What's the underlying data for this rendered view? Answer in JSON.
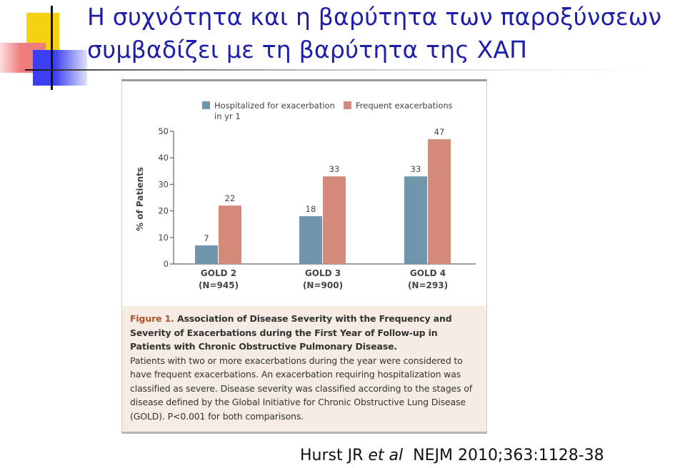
{
  "slide": {
    "title_line1": "Η συχνότητα και η βαρύτητα των παροξύνσεων",
    "title_line2": "συμβαδίζει με τη βαρύτητα της ΧΑΠ",
    "citation_author": "Hurst JR ",
    "citation_etal": "et al",
    "citation_journal": "  NEJM 2010;363:1128-38"
  },
  "colors": {
    "title": "#1d1fa8",
    "hospitalized": "#6f96ac",
    "frequent": "#d38a78",
    "caption_label": "#b2512d"
  },
  "chart_data": {
    "type": "bar",
    "categories": [
      "GOLD 2",
      "GOLD 3",
      "GOLD 4"
    ],
    "category_sublabels": [
      "(N=945)",
      "(N=900)",
      "(N=293)"
    ],
    "series": [
      {
        "name": "Hospitalized for exacerbation in yr 1",
        "name_line1": "Hospitalized for exacerbation",
        "name_line2": "in yr 1",
        "color": "#6f96ac",
        "values": [
          7,
          18,
          33
        ]
      },
      {
        "name": "Frequent exacerbations",
        "color": "#d38a78",
        "values": [
          22,
          33,
          47
        ]
      }
    ],
    "ylabel": "% of Patients",
    "ylim": [
      0,
      50
    ],
    "yticks": [
      0,
      10,
      20,
      30,
      40,
      50
    ],
    "grid": false,
    "legend": "top"
  },
  "caption": {
    "label": "Figure 1.",
    "title_rest": " Association of Disease Severity with the Frequency and Severity of Exacerbations during the First Year of Follow-up in Patients with Chronic Obstructive Pulmonary Disease.",
    "body": "Patients with two or more exacerbations during the year were considered to have frequent exacerbations. An exacerbation requiring hospitalization was classified as severe. Disease severity was classified according to the stages of disease defined by the Global Initiative for Chronic Obstructive Lung Disease (GOLD). P<0.001 for both comparisons."
  }
}
